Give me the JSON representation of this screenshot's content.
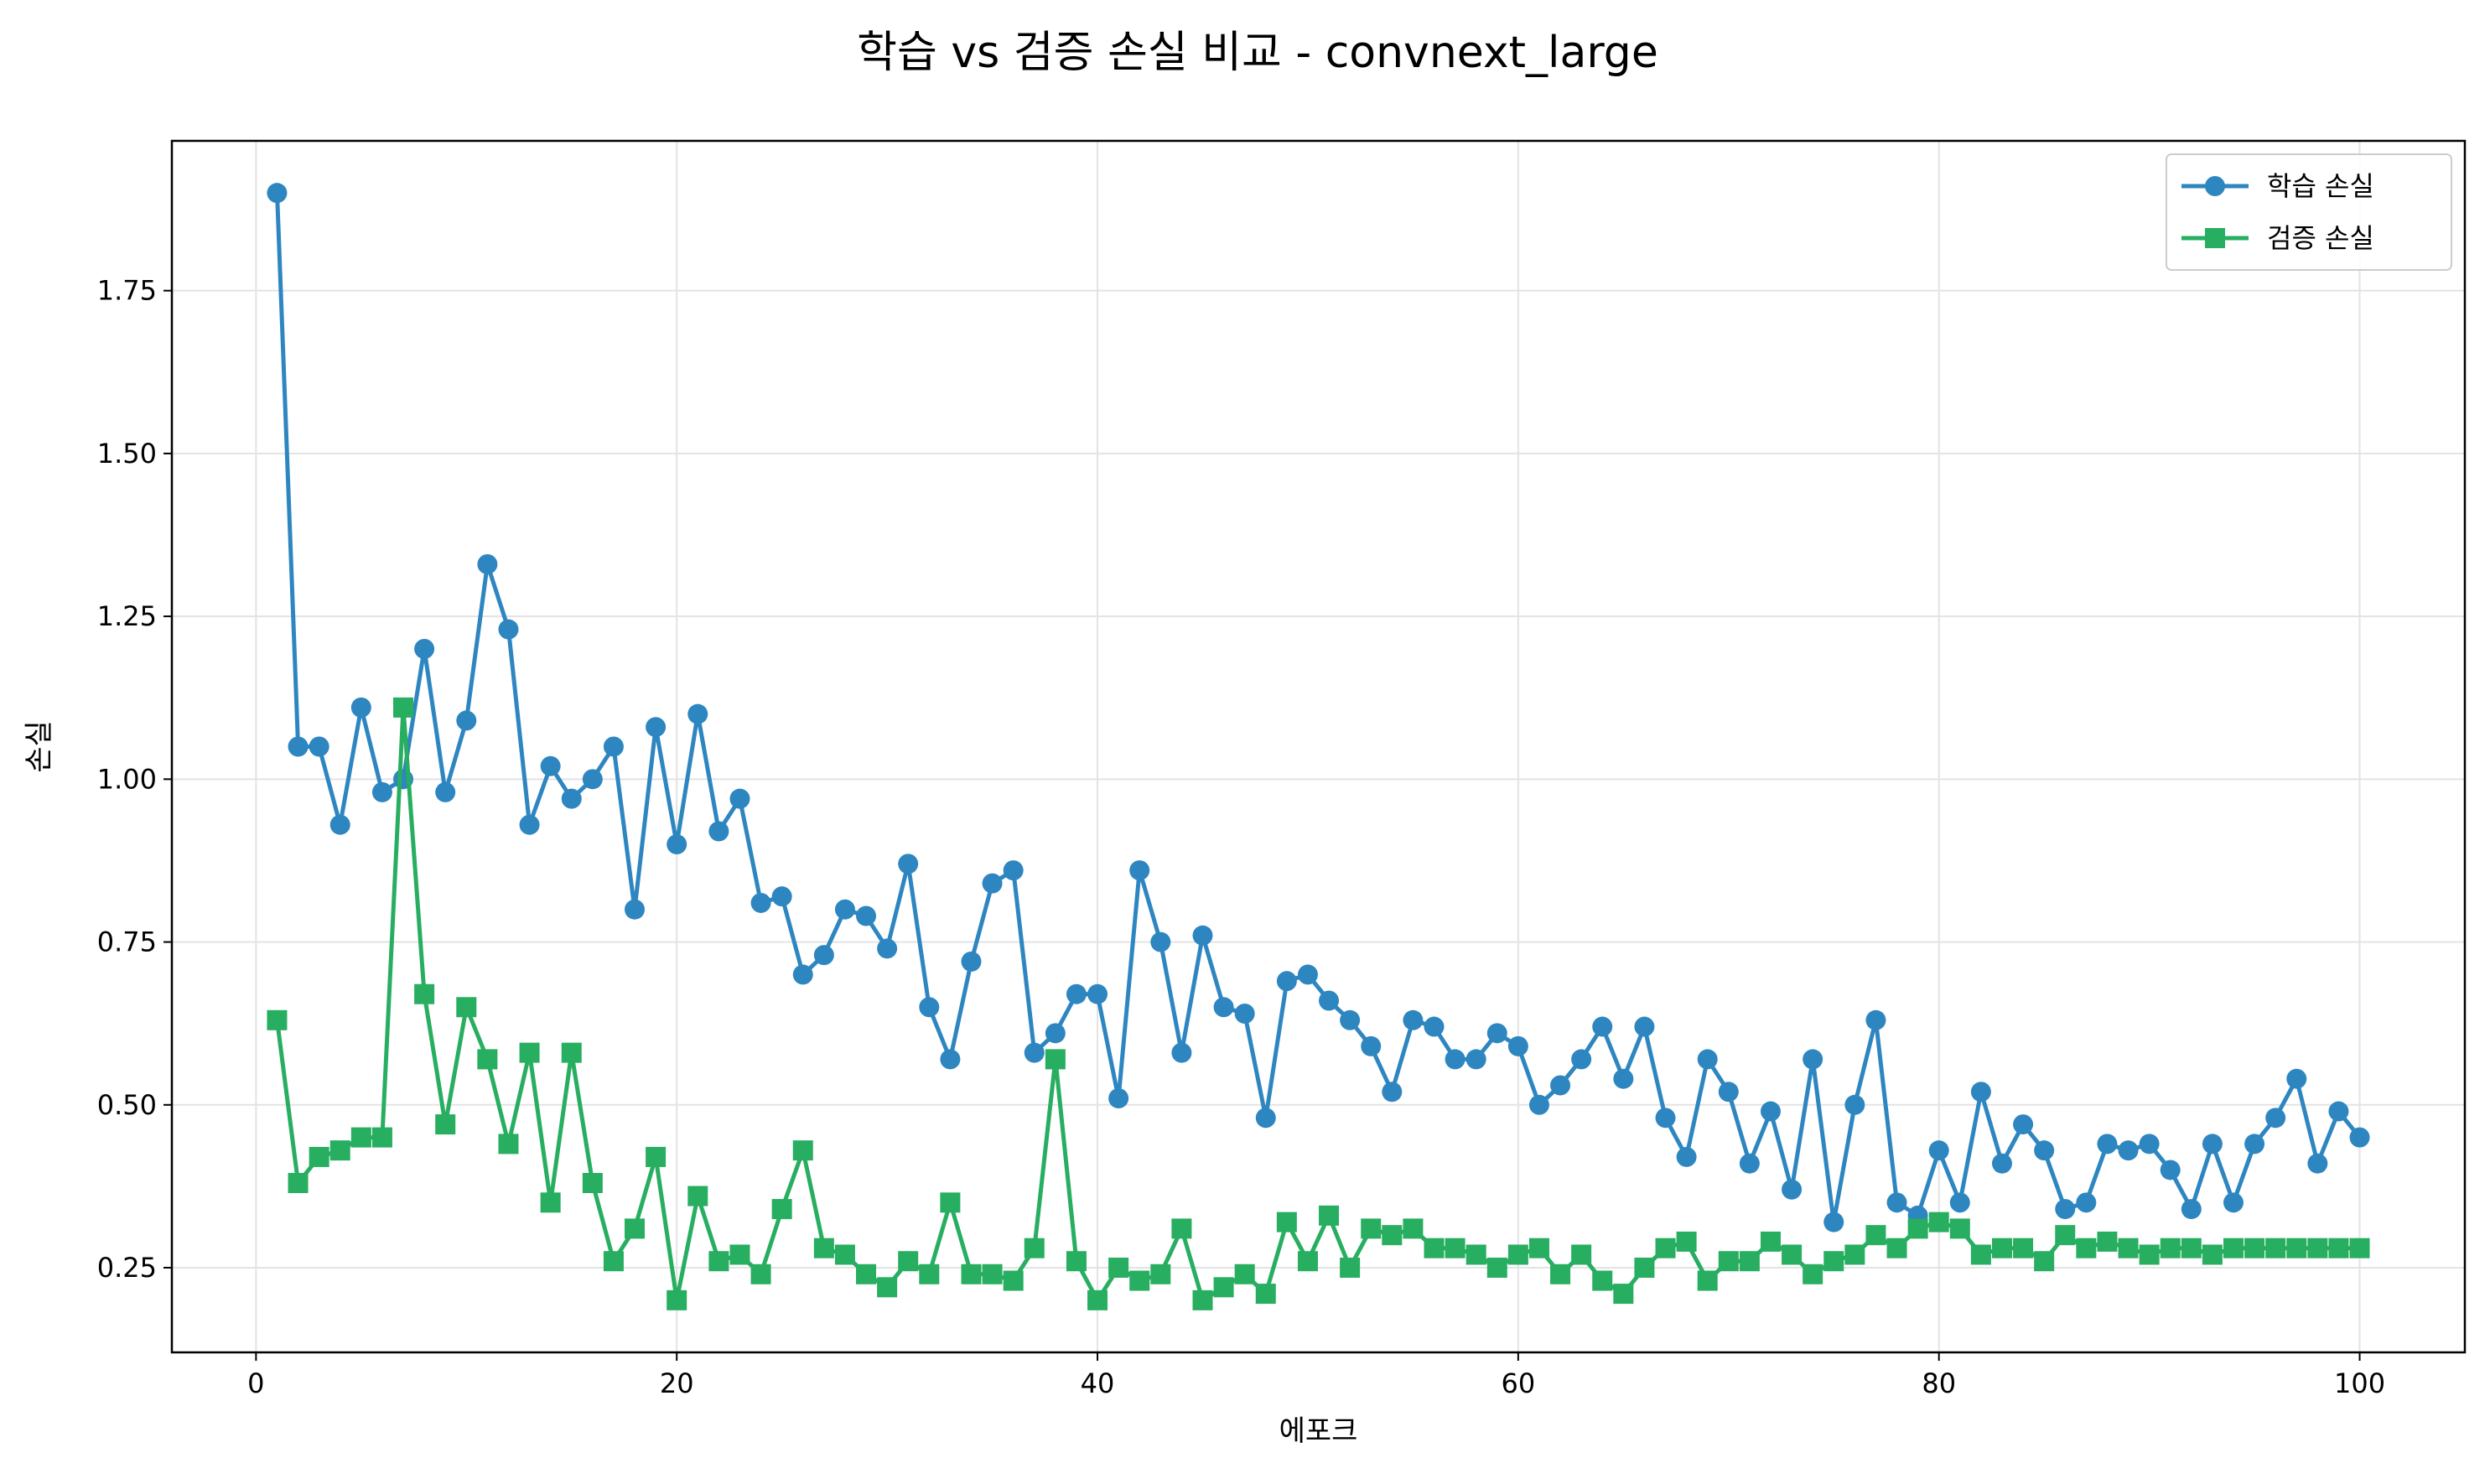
{
  "chart_data": {
    "type": "line",
    "title": "학습 vs 검증 손실 비교 - convnext_large",
    "xlabel": "에포크",
    "ylabel": "손실",
    "xlim": [
      -4,
      105
    ],
    "ylim": [
      0.12,
      1.98
    ],
    "xticks": [
      0,
      20,
      40,
      60,
      80,
      100
    ],
    "xtick_labels": [
      "0",
      "20",
      "40",
      "60",
      "80",
      "100"
    ],
    "yticks": [
      0.25,
      0.5,
      0.75,
      1.0,
      1.25,
      1.5,
      1.75
    ],
    "ytick_labels": [
      "0.25",
      "0.50",
      "0.75",
      "1.00",
      "1.25",
      "1.50",
      "1.75"
    ],
    "grid": true,
    "legend_position": "top-right",
    "x": [
      1,
      2,
      3,
      4,
      5,
      6,
      7,
      8,
      9,
      10,
      11,
      12,
      13,
      14,
      15,
      16,
      17,
      18,
      19,
      20,
      21,
      22,
      23,
      24,
      25,
      26,
      27,
      28,
      29,
      30,
      31,
      32,
      33,
      34,
      35,
      36,
      37,
      38,
      39,
      40,
      41,
      42,
      43,
      44,
      45,
      46,
      47,
      48,
      49,
      50,
      51,
      52,
      53,
      54,
      55,
      56,
      57,
      58,
      59,
      60,
      61,
      62,
      63,
      64,
      65,
      66,
      67,
      68,
      69,
      70,
      71,
      72,
      73,
      74,
      75,
      76,
      77,
      78,
      79,
      80,
      81,
      82,
      83,
      84,
      85,
      86,
      87,
      88,
      89,
      90,
      91,
      92,
      93,
      94,
      95,
      96,
      97,
      98,
      99,
      100
    ],
    "series": [
      {
        "name": "학습 손실",
        "color": "#2e86c1",
        "marker": "circle",
        "values": [
          1.9,
          1.05,
          1.05,
          0.93,
          1.11,
          0.98,
          1.0,
          1.2,
          0.98,
          1.09,
          1.33,
          1.23,
          0.93,
          1.02,
          0.97,
          1.0,
          1.05,
          0.8,
          1.08,
          0.9,
          1.1,
          0.92,
          0.97,
          0.81,
          0.82,
          0.7,
          0.73,
          0.8,
          0.79,
          0.74,
          0.87,
          0.65,
          0.57,
          0.72,
          0.84,
          0.86,
          0.58,
          0.61,
          0.67,
          0.67,
          0.51,
          0.86,
          0.75,
          0.58,
          0.76,
          0.65,
          0.64,
          0.48,
          0.69,
          0.7,
          0.66,
          0.63,
          0.59,
          0.52,
          0.63,
          0.62,
          0.57,
          0.57,
          0.61,
          0.59,
          0.5,
          0.53,
          0.57,
          0.62,
          0.54,
          0.62,
          0.48,
          0.42,
          0.57,
          0.52,
          0.41,
          0.49,
          0.37,
          0.57,
          0.32,
          0.5,
          0.63,
          0.35,
          0.33,
          0.43,
          0.35,
          0.52,
          0.41,
          0.47,
          0.43,
          0.34,
          0.35,
          0.44,
          0.43,
          0.44,
          0.4,
          0.34,
          0.44,
          0.35,
          0.44,
          0.48,
          0.54,
          0.41,
          0.49,
          0.45
        ]
      },
      {
        "name": "검증 손실",
        "color": "#27ae60",
        "marker": "square",
        "values": [
          0.63,
          0.38,
          0.42,
          0.43,
          0.45,
          0.45,
          1.11,
          0.67,
          0.47,
          0.65,
          0.57,
          0.44,
          0.58,
          0.35,
          0.58,
          0.38,
          0.26,
          0.31,
          0.42,
          0.2,
          0.36,
          0.26,
          0.27,
          0.24,
          0.34,
          0.43,
          0.28,
          0.27,
          0.24,
          0.22,
          0.26,
          0.24,
          0.35,
          0.24,
          0.24,
          0.23,
          0.28,
          0.57,
          0.26,
          0.2,
          0.25,
          0.23,
          0.24,
          0.31,
          0.2,
          0.22,
          0.24,
          0.21,
          0.32,
          0.26,
          0.33,
          0.25,
          0.31,
          0.3,
          0.31,
          0.28,
          0.28,
          0.27,
          0.25,
          0.27,
          0.28,
          0.24,
          0.27,
          0.23,
          0.21,
          0.25,
          0.28,
          0.29,
          0.23,
          0.26,
          0.26,
          0.29,
          0.27,
          0.24,
          0.26,
          0.27,
          0.3,
          0.28,
          0.31,
          0.32,
          0.31,
          0.27,
          0.28,
          0.28,
          0.26,
          0.3,
          0.28,
          0.29,
          0.28,
          0.27,
          0.28,
          0.28,
          0.27,
          0.28,
          0.28,
          0.28,
          0.28,
          0.28,
          0.28,
          0.28
        ]
      }
    ]
  }
}
